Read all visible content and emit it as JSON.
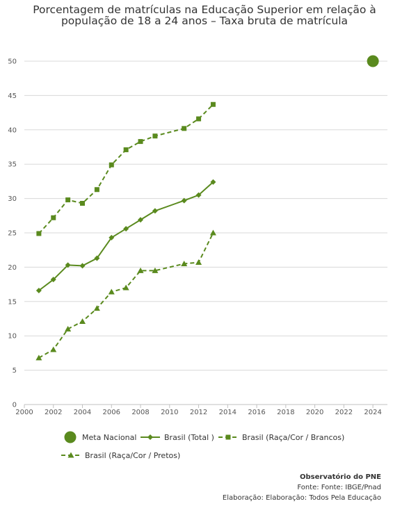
{
  "chart_data": {
    "type": "line",
    "title_lines": [
      "Porcentagem de matrículas na Educação Superior em relação à",
      "população de 18 a 24 anos – Taxa bruta de matrícula"
    ],
    "xlabel": "",
    "ylabel": "",
    "xlim": [
      2000,
      2025
    ],
    "ylim": [
      0,
      50
    ],
    "x_ticks": [
      2000,
      2002,
      2004,
      2006,
      2008,
      2010,
      2012,
      2014,
      2016,
      2018,
      2020,
      2022,
      2024
    ],
    "y_ticks": [
      0,
      5,
      10,
      15,
      20,
      25,
      30,
      35,
      40,
      45,
      50
    ],
    "grid": true,
    "legend_position": "bottom",
    "color": "#5a8a1e",
    "series": [
      {
        "name": "Meta Nacional",
        "marker": "circle",
        "line": "none",
        "x": [
          2024
        ],
        "y": [
          50
        ]
      },
      {
        "name": "Brasil (Total )",
        "marker": "diamond",
        "line": "solid",
        "x": [
          2001,
          2002,
          2003,
          2004,
          2005,
          2006,
          2007,
          2008,
          2009,
          2011,
          2012,
          2013
        ],
        "y": [
          16.6,
          18.2,
          20.3,
          20.2,
          21.3,
          24.3,
          25.6,
          26.9,
          28.2,
          29.7,
          30.5,
          32.4
        ]
      },
      {
        "name": "Brasil (Raça/Cor / Brancos)",
        "marker": "square",
        "line": "dashed",
        "x": [
          2001,
          2002,
          2003,
          2004,
          2005,
          2006,
          2007,
          2008,
          2009,
          2011,
          2012,
          2013
        ],
        "y": [
          24.9,
          27.2,
          29.8,
          29.3,
          31.3,
          34.9,
          37.1,
          38.3,
          39.1,
          40.2,
          41.6,
          43.7
        ]
      },
      {
        "name": "Brasil (Raça/Cor / Pretos)",
        "marker": "triangle",
        "line": "dashed",
        "x": [
          2001,
          2002,
          2003,
          2004,
          2005,
          2006,
          2007,
          2008,
          2009,
          2011,
          2012,
          2013
        ],
        "y": [
          6.8,
          8.0,
          11.0,
          12.1,
          14.0,
          16.4,
          17.0,
          19.5,
          19.5,
          20.5,
          20.7,
          25.0
        ]
      }
    ]
  },
  "credits": {
    "organization": "Observatório do PNE",
    "source": "Fonte: Fonte: IBGE/Pnad",
    "elaboration": "Elaboração: Elaboração: Todos Pela Educação"
  }
}
